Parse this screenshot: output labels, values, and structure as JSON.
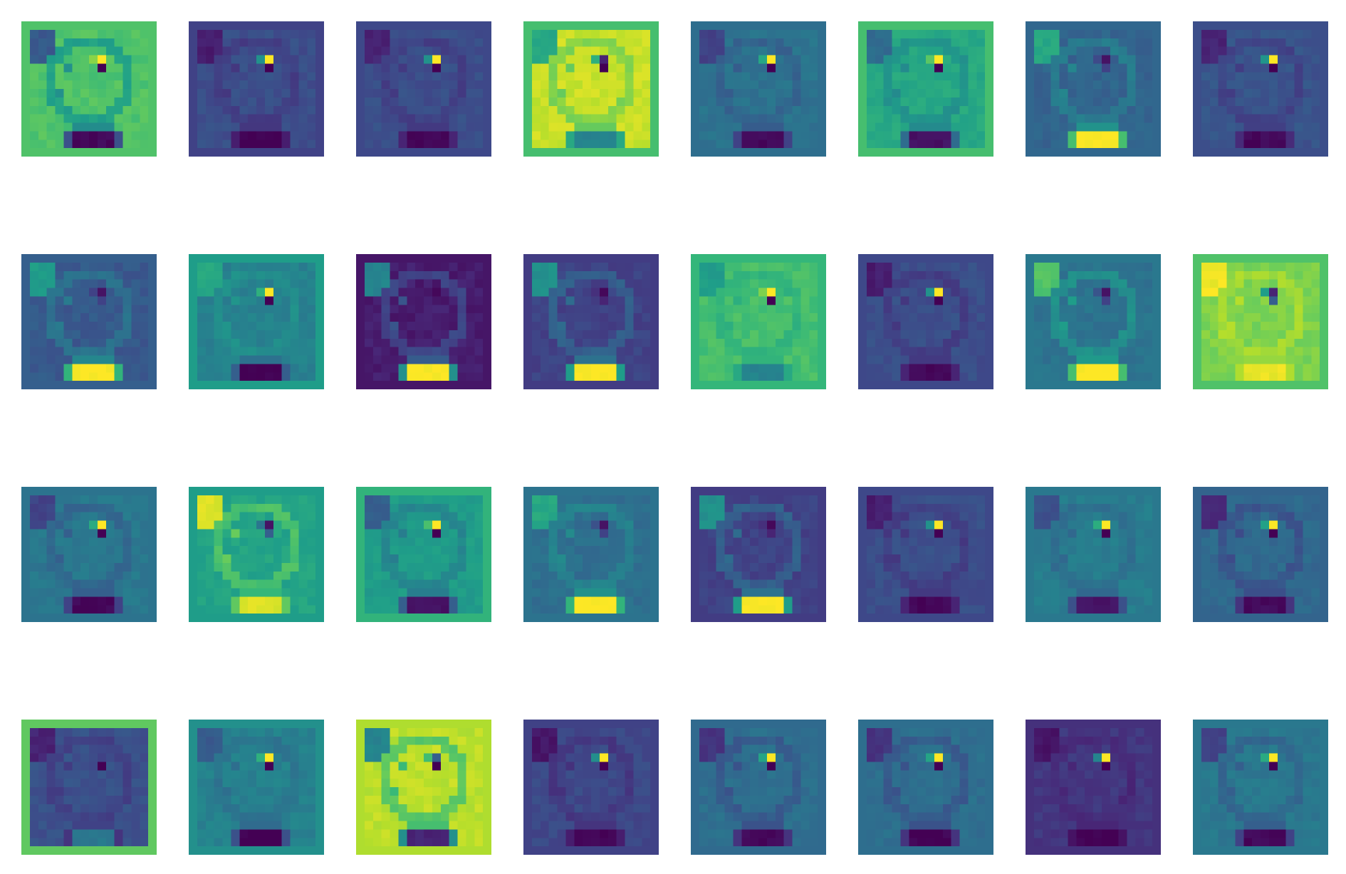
{
  "figure": {
    "description_free": true,
    "grid": {
      "rows": 4,
      "cols": 8
    },
    "colormap": [
      "#440154",
      "#482878",
      "#3e4989",
      "#31688e",
      "#26828e",
      "#1f9e89",
      "#35b779",
      "#6ece58",
      "#b5de2b",
      "#fde725"
    ],
    "panels": [
      {
        "bg": 0.68,
        "face": 0.72,
        "cheekDark": 0.28,
        "dot": 1.0,
        "dotLow": 0.0,
        "mouth": 0.02,
        "mouthEdge": 0.25,
        "border": 0.72
      },
      {
        "bg": 0.2,
        "face": 0.24,
        "cheekDark": 0.08,
        "dot": 1.0,
        "dotLow": 0.0,
        "mouth": 0.0,
        "mouthEdge": 0.08,
        "border": 0.2
      },
      {
        "bg": 0.22,
        "face": 0.24,
        "cheekDark": 0.1,
        "dot": 1.0,
        "dotLow": 0.0,
        "mouth": 0.02,
        "mouthEdge": 0.1,
        "border": 0.22
      },
      {
        "bg": 0.9,
        "face": 0.92,
        "cheekDark": 0.6,
        "dot": 0.1,
        "dotLow": 0.0,
        "mouth": 0.45,
        "mouthEdge": 0.6,
        "border": 0.7
      },
      {
        "bg": 0.36,
        "face": 0.38,
        "cheekDark": 0.2,
        "dot": 1.0,
        "dotLow": 0.0,
        "mouth": 0.02,
        "mouthEdge": 0.2,
        "border": 0.36
      },
      {
        "bg": 0.58,
        "face": 0.6,
        "cheekDark": 0.35,
        "dot": 1.0,
        "dotLow": 0.0,
        "mouth": 0.05,
        "mouthEdge": 0.35,
        "border": 0.7
      },
      {
        "bg": 0.33,
        "face": 0.32,
        "cheekDark": 0.6,
        "dot": 0.05,
        "dotLow": 0.2,
        "mouth": 1.0,
        "mouthEdge": 0.7,
        "border": 0.33
      },
      {
        "bg": 0.24,
        "face": 0.26,
        "cheekDark": 0.1,
        "dot": 1.0,
        "dotLow": 0.0,
        "mouth": 0.02,
        "mouthEdge": 0.12,
        "border": 0.24
      },
      {
        "bg": 0.3,
        "face": 0.28,
        "cheekDark": 0.55,
        "dot": 0.05,
        "dotLow": 0.2,
        "mouth": 1.0,
        "mouthEdge": 0.65,
        "border": 0.3
      },
      {
        "bg": 0.46,
        "face": 0.44,
        "cheekDark": 0.6,
        "dot": 1.0,
        "dotLow": 0.0,
        "mouth": 0.0,
        "mouthEdge": 0.3,
        "border": 0.55
      },
      {
        "bg": 0.06,
        "face": 0.08,
        "cheekDark": 0.45,
        "dot": 0.02,
        "dotLow": 0.06,
        "mouth": 1.0,
        "mouthEdge": 0.5,
        "border": 0.06
      },
      {
        "bg": 0.18,
        "face": 0.2,
        "cheekDark": 0.5,
        "dot": 0.02,
        "dotLow": 0.1,
        "mouth": 1.0,
        "mouthEdge": 0.55,
        "border": 0.18
      },
      {
        "bg": 0.66,
        "face": 0.7,
        "cheekDark": 0.55,
        "dot": 1.0,
        "dotLow": 0.0,
        "mouth": 0.45,
        "mouthEdge": 0.6,
        "border": 0.66
      },
      {
        "bg": 0.22,
        "face": 0.24,
        "cheekDark": 0.08,
        "dot": 1.0,
        "dotLow": 0.0,
        "mouth": 0.02,
        "mouthEdge": 0.1,
        "border": 0.22
      },
      {
        "bg": 0.4,
        "face": 0.38,
        "cheekDark": 0.72,
        "dot": 0.05,
        "dotLow": 0.2,
        "mouth": 1.0,
        "mouthEdge": 0.7,
        "border": 0.4
      },
      {
        "bg": 0.78,
        "face": 0.8,
        "cheekDark": 0.98,
        "dot": 0.1,
        "dotLow": 0.3,
        "mouth": 0.97,
        "mouthEdge": 0.88,
        "border": 0.72
      },
      {
        "bg": 0.38,
        "face": 0.4,
        "cheekDark": 0.2,
        "dot": 1.0,
        "dotLow": 0.0,
        "mouth": 0.02,
        "mouthEdge": 0.2,
        "border": 0.38
      },
      {
        "bg": 0.62,
        "face": 0.58,
        "cheekDark": 0.95,
        "dot": 0.05,
        "dotLow": 0.3,
        "mouth": 0.95,
        "mouthEdge": 0.75,
        "border": 0.55
      },
      {
        "bg": 0.52,
        "face": 0.55,
        "cheekDark": 0.3,
        "dot": 1.0,
        "dotLow": 0.0,
        "mouth": 0.05,
        "mouthEdge": 0.3,
        "border": 0.65
      },
      {
        "bg": 0.38,
        "face": 0.36,
        "cheekDark": 0.6,
        "dot": 0.05,
        "dotLow": 0.2,
        "mouth": 1.0,
        "mouthEdge": 0.65,
        "border": 0.38
      },
      {
        "bg": 0.18,
        "face": 0.2,
        "cheekDark": 0.5,
        "dot": 0.02,
        "dotLow": 0.1,
        "mouth": 1.0,
        "mouthEdge": 0.55,
        "border": 0.18
      },
      {
        "bg": 0.22,
        "face": 0.24,
        "cheekDark": 0.08,
        "dot": 1.0,
        "dotLow": 0.0,
        "mouth": 0.02,
        "mouthEdge": 0.1,
        "border": 0.22
      },
      {
        "bg": 0.4,
        "face": 0.42,
        "cheekDark": 0.25,
        "dot": 1.0,
        "dotLow": 0.0,
        "mouth": 0.05,
        "mouthEdge": 0.25,
        "border": 0.4
      },
      {
        "bg": 0.32,
        "face": 0.34,
        "cheekDark": 0.12,
        "dot": 1.0,
        "dotLow": 0.0,
        "mouth": 0.03,
        "mouthEdge": 0.15,
        "border": 0.32
      },
      {
        "bg": 0.2,
        "face": 0.25,
        "cheekDark": 0.1,
        "dot": 0.2,
        "dotLow": 0.0,
        "mouth": 0.4,
        "mouthEdge": 0.15,
        "border": 0.75
      },
      {
        "bg": 0.46,
        "face": 0.44,
        "cheekDark": 0.28,
        "dot": 1.0,
        "dotLow": 0.0,
        "mouth": 0.0,
        "mouthEdge": 0.25,
        "border": 0.5
      },
      {
        "bg": 0.92,
        "face": 0.9,
        "cheekDark": 0.45,
        "dot": 0.3,
        "dotLow": 0.0,
        "mouth": 0.1,
        "mouthEdge": 0.5,
        "border": 0.88
      },
      {
        "bg": 0.2,
        "face": 0.22,
        "cheekDark": 0.06,
        "dot": 1.0,
        "dotLow": 0.0,
        "mouth": 0.01,
        "mouthEdge": 0.08,
        "border": 0.2
      },
      {
        "bg": 0.34,
        "face": 0.36,
        "cheekDark": 0.15,
        "dot": 1.0,
        "dotLow": 0.0,
        "mouth": 0.02,
        "mouthEdge": 0.15,
        "border": 0.34
      },
      {
        "bg": 0.36,
        "face": 0.36,
        "cheekDark": 0.15,
        "dot": 1.0,
        "dotLow": 0.0,
        "mouth": 0.01,
        "mouthEdge": 0.15,
        "border": 0.36
      },
      {
        "bg": 0.14,
        "face": 0.16,
        "cheekDark": 0.05,
        "dot": 1.0,
        "dotLow": 0.0,
        "mouth": 0.0,
        "mouthEdge": 0.05,
        "border": 0.14
      },
      {
        "bg": 0.4,
        "face": 0.4,
        "cheekDark": 0.2,
        "dot": 1.0,
        "dotLow": 0.0,
        "mouth": 0.02,
        "mouthEdge": 0.2,
        "border": 0.4
      }
    ]
  }
}
